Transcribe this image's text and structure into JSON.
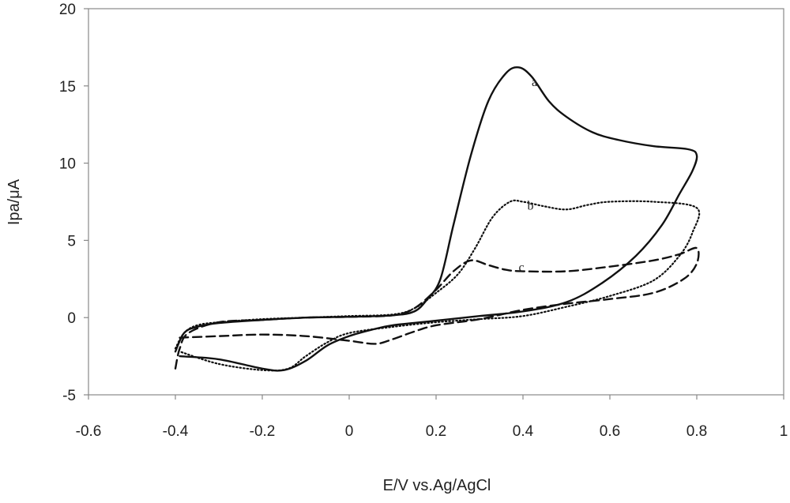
{
  "chart_data": {
    "type": "line",
    "title": "",
    "xlabel": "E/V vs.Ag/AgCl",
    "ylabel": "Ipa/μA",
    "xlim": [
      -0.6,
      1.0
    ],
    "ylim": [
      -5,
      20
    ],
    "xticks": [
      "-0.6",
      "-0.4",
      "-0.2",
      "0",
      "0.2",
      "0.4",
      "0.6",
      "0.8",
      "1"
    ],
    "yticks": [
      "-5",
      "0",
      "5",
      "10",
      "15",
      "20"
    ],
    "grid": false,
    "legend": "none",
    "series": [
      {
        "name": "a",
        "style": "solid",
        "label_at": [
          0.42,
          15.0
        ],
        "points": [
          [
            -0.4,
            -2.2
          ],
          [
            -0.38,
            -1.0
          ],
          [
            -0.35,
            -0.6
          ],
          [
            -0.3,
            -0.35
          ],
          [
            -0.2,
            -0.15
          ],
          [
            -0.1,
            0.0
          ],
          [
            0.0,
            0.05
          ],
          [
            0.1,
            0.15
          ],
          [
            0.15,
            0.4
          ],
          [
            0.18,
            1.2
          ],
          [
            0.21,
            2.5
          ],
          [
            0.24,
            6.0
          ],
          [
            0.28,
            10.5
          ],
          [
            0.32,
            14.0
          ],
          [
            0.36,
            15.8
          ],
          [
            0.39,
            16.2
          ],
          [
            0.42,
            15.6
          ],
          [
            0.46,
            14.0
          ],
          [
            0.5,
            13.0
          ],
          [
            0.56,
            12.0
          ],
          [
            0.62,
            11.5
          ],
          [
            0.7,
            11.1
          ],
          [
            0.78,
            10.9
          ],
          [
            0.8,
            10.5
          ],
          [
            0.79,
            9.5
          ],
          [
            0.76,
            8.0
          ],
          [
            0.72,
            6.0
          ],
          [
            0.66,
            4.0
          ],
          [
            0.58,
            2.2
          ],
          [
            0.5,
            1.0
          ],
          [
            0.4,
            0.4
          ],
          [
            0.3,
            0.1
          ],
          [
            0.2,
            -0.2
          ],
          [
            0.1,
            -0.5
          ],
          [
            0.05,
            -0.8
          ],
          [
            0.0,
            -1.2
          ],
          [
            -0.05,
            -1.8
          ],
          [
            -0.1,
            -2.8
          ],
          [
            -0.15,
            -3.4
          ],
          [
            -0.2,
            -3.3
          ],
          [
            -0.3,
            -2.7
          ],
          [
            -0.39,
            -2.5
          ]
        ]
      },
      {
        "name": "b",
        "style": "dotted",
        "label_at": [
          0.41,
          7.0
        ],
        "points": [
          [
            -0.4,
            -2.0
          ],
          [
            -0.38,
            -1.0
          ],
          [
            -0.35,
            -0.5
          ],
          [
            -0.3,
            -0.3
          ],
          [
            -0.2,
            -0.1
          ],
          [
            -0.1,
            0.0
          ],
          [
            0.0,
            0.1
          ],
          [
            0.1,
            0.2
          ],
          [
            0.15,
            0.6
          ],
          [
            0.2,
            1.6
          ],
          [
            0.25,
            2.8
          ],
          [
            0.29,
            4.5
          ],
          [
            0.33,
            6.5
          ],
          [
            0.37,
            7.5
          ],
          [
            0.4,
            7.5
          ],
          [
            0.45,
            7.2
          ],
          [
            0.5,
            7.0
          ],
          [
            0.55,
            7.3
          ],
          [
            0.6,
            7.5
          ],
          [
            0.7,
            7.5
          ],
          [
            0.8,
            7.1
          ],
          [
            0.79,
            5.5
          ],
          [
            0.76,
            4.0
          ],
          [
            0.7,
            2.4
          ],
          [
            0.6,
            1.4
          ],
          [
            0.5,
            0.7
          ],
          [
            0.4,
            0.1
          ],
          [
            0.3,
            -0.1
          ],
          [
            0.2,
            -0.3
          ],
          [
            0.1,
            -0.6
          ],
          [
            0.0,
            -1.0
          ],
          [
            -0.05,
            -1.6
          ],
          [
            -0.1,
            -2.5
          ],
          [
            -0.14,
            -3.3
          ],
          [
            -0.2,
            -3.4
          ],
          [
            -0.3,
            -3.0
          ],
          [
            -0.39,
            -2.2
          ]
        ]
      },
      {
        "name": "c",
        "style": "dashed",
        "label_at": [
          0.39,
          3.0
        ],
        "points": [
          [
            -0.4,
            -3.3
          ],
          [
            -0.39,
            -2.0
          ],
          [
            -0.37,
            -1.0
          ],
          [
            -0.3,
            -0.3
          ],
          [
            -0.2,
            -0.15
          ],
          [
            -0.1,
            0.0
          ],
          [
            0.0,
            0.05
          ],
          [
            0.1,
            0.15
          ],
          [
            0.15,
            0.6
          ],
          [
            0.2,
            1.8
          ],
          [
            0.24,
            3.0
          ],
          [
            0.28,
            3.7
          ],
          [
            0.32,
            3.4
          ],
          [
            0.36,
            3.1
          ],
          [
            0.4,
            3.0
          ],
          [
            0.5,
            3.0
          ],
          [
            0.6,
            3.3
          ],
          [
            0.7,
            3.7
          ],
          [
            0.76,
            4.1
          ],
          [
            0.8,
            4.5
          ],
          [
            0.8,
            3.5
          ],
          [
            0.77,
            2.5
          ],
          [
            0.7,
            1.6
          ],
          [
            0.6,
            1.2
          ],
          [
            0.5,
            0.9
          ],
          [
            0.4,
            0.5
          ],
          [
            0.3,
            -0.1
          ],
          [
            0.2,
            -0.5
          ],
          [
            0.15,
            -0.9
          ],
          [
            0.1,
            -1.4
          ],
          [
            0.06,
            -1.7
          ],
          [
            0.0,
            -1.5
          ],
          [
            -0.1,
            -1.2
          ],
          [
            -0.2,
            -1.1
          ],
          [
            -0.3,
            -1.2
          ],
          [
            -0.39,
            -1.3
          ]
        ]
      }
    ]
  }
}
